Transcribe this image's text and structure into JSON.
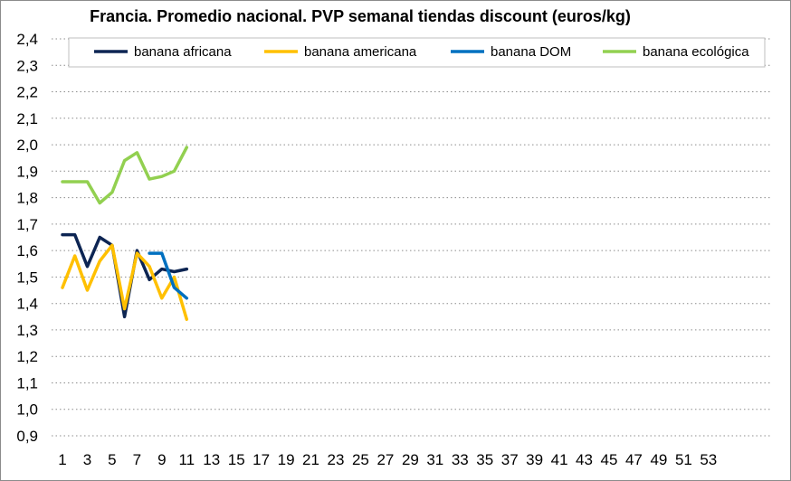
{
  "chart_data": {
    "type": "line",
    "title": "Francia. Promedio nacional. PVP semanal tiendas discount (euros/kg)",
    "xlabel": "",
    "ylabel": "",
    "ylim": [
      0.9,
      2.4
    ],
    "y_ticks": [
      "0,9",
      "1,0",
      "1,1",
      "1,2",
      "1,3",
      "1,4",
      "1,5",
      "1,6",
      "1,7",
      "1,8",
      "1,9",
      "2,0",
      "2,1",
      "2,2",
      "2,3",
      "2,4"
    ],
    "y_tick_values": [
      0.9,
      1.0,
      1.1,
      1.2,
      1.3,
      1.4,
      1.5,
      1.6,
      1.7,
      1.8,
      1.9,
      2.0,
      2.1,
      2.2,
      2.3,
      2.4
    ],
    "x_ticks": [
      "1",
      "3",
      "5",
      "7",
      "9",
      "11",
      "13",
      "15",
      "17",
      "19",
      "21",
      "23",
      "25",
      "27",
      "29",
      "31",
      "33",
      "35",
      "37",
      "39",
      "41",
      "43",
      "45",
      "47",
      "49",
      "51",
      "53"
    ],
    "x_tick_values": [
      1,
      3,
      5,
      7,
      9,
      11,
      13,
      15,
      17,
      19,
      21,
      23,
      25,
      27,
      29,
      31,
      33,
      35,
      37,
      39,
      41,
      43,
      45,
      47,
      49,
      51,
      53
    ],
    "x_range": [
      1,
      53
    ],
    "grid": "horizontal dotted",
    "legend_position": "top",
    "series": [
      {
        "name": "banana africana",
        "color": "#0d2553",
        "x": [
          1,
          2,
          3,
          4,
          5,
          6,
          7,
          8,
          9,
          10,
          11
        ],
        "values": [
          1.66,
          1.66,
          1.54,
          1.65,
          1.62,
          1.35,
          1.6,
          1.49,
          1.53,
          1.52,
          1.53
        ]
      },
      {
        "name": "banana americana",
        "color": "#ffc000",
        "x": [
          1,
          2,
          3,
          4,
          5,
          6,
          7,
          8,
          9,
          10,
          11
        ],
        "values": [
          1.46,
          1.58,
          1.45,
          1.56,
          1.62,
          1.38,
          1.59,
          1.54,
          1.42,
          1.5,
          1.34
        ]
      },
      {
        "name": "banana DOM",
        "color": "#0070c0",
        "x": [
          8,
          9,
          10,
          11
        ],
        "values": [
          1.59,
          1.59,
          1.46,
          1.42
        ]
      },
      {
        "name": "banana ecológica",
        "color": "#92d050",
        "x": [
          1,
          2,
          3,
          4,
          5,
          6,
          7,
          8,
          9,
          10,
          11
        ],
        "values": [
          1.86,
          1.86,
          1.86,
          1.78,
          1.82,
          1.94,
          1.97,
          1.87,
          1.88,
          1.9,
          1.99
        ]
      }
    ]
  }
}
